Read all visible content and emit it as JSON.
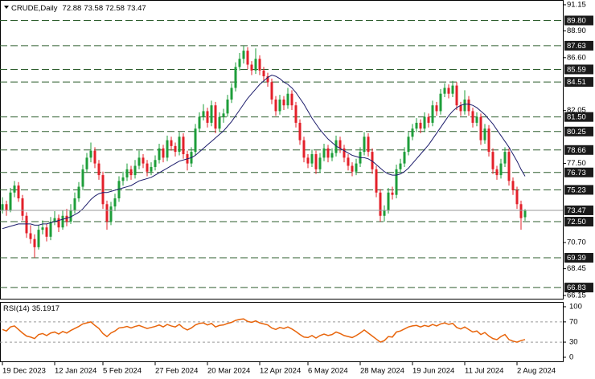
{
  "chart_data": {
    "type": "candlestick",
    "symbol": "CRUDE,Daily",
    "up_color": "#1e9e3a",
    "down_color": "#e3202a",
    "ma_color": "#1c1c6b",
    "level_color": "#2e5e2e",
    "price_line_color": "#999999",
    "ylim": [
      65.87,
      91.56
    ],
    "yticks": [
      91.15,
      {
        "value": 88.9,
        "label": "88.90"
      },
      {
        "value": 86.6,
        "label": "86.60"
      },
      82.05,
      {
        "value": 77.5,
        "label": "77.50"
      },
      {
        "value": 70.7,
        "label": "70.70"
      },
      68.45,
      66.15
    ],
    "levels": [
      {
        "value": 89.8,
        "label": "89.80"
      },
      87.63,
      85.59,
      84.51,
      {
        "value": 81.5,
        "label": "81.50"
      },
      80.25,
      78.66,
      76.73,
      75.23,
      {
        "value": 72.5,
        "label": "72.50"
      },
      69.39,
      66.83
    ],
    "categories": [
      "19 Dec 2023",
      null,
      null,
      null,
      null,
      null,
      null,
      null,
      null,
      null,
      null,
      null,
      null,
      "12 Jan 2024",
      null,
      null,
      null,
      null,
      null,
      null,
      null,
      null,
      null,
      null,
      null,
      "5 Feb 2024",
      null,
      null,
      null,
      null,
      null,
      null,
      null,
      null,
      null,
      null,
      null,
      null,
      "27 Feb 2024",
      null,
      null,
      null,
      null,
      null,
      null,
      null,
      null,
      null,
      null,
      null,
      null,
      "20 Mar 2024",
      null,
      null,
      null,
      null,
      null,
      null,
      null,
      null,
      null,
      null,
      null,
      null,
      "12 Apr 2024",
      null,
      null,
      null,
      null,
      null,
      null,
      null,
      null,
      null,
      null,
      null,
      "6 May 2024",
      null,
      null,
      null,
      null,
      null,
      null,
      null,
      null,
      null,
      null,
      null,
      null,
      "28 May 2024",
      null,
      null,
      null,
      null,
      null,
      null,
      null,
      null,
      null,
      null,
      null,
      null,
      "19 Jun 2024",
      null,
      null,
      null,
      null,
      null,
      null,
      null,
      null,
      null,
      null,
      null,
      null,
      "11 Jul 2024",
      null,
      null,
      null,
      null,
      null,
      null,
      null,
      null,
      null,
      null,
      null,
      null,
      "2 Aug 2024",
      null,
      null
    ],
    "candles": [
      [
        73.5,
        74.6,
        73.2,
        74.0
      ],
      [
        74.0,
        74.3,
        73.0,
        73.5
      ],
      [
        73.5,
        75.4,
        73.3,
        75.0
      ],
      [
        75.0,
        76.0,
        74.6,
        75.6
      ],
      [
        75.6,
        75.9,
        74.2,
        74.5
      ],
      [
        74.5,
        74.8,
        72.6,
        73.0
      ],
      [
        73.0,
        73.3,
        71.1,
        71.5
      ],
      [
        71.5,
        72.2,
        70.6,
        71.0
      ],
      [
        71.0,
        71.4,
        69.4,
        70.3
      ],
      [
        70.3,
        72.2,
        70.1,
        71.8
      ],
      [
        71.8,
        72.6,
        71.4,
        72.0
      ],
      [
        72.0,
        72.3,
        70.8,
        71.2
      ],
      [
        71.2,
        72.9,
        70.9,
        72.5
      ],
      [
        72.5,
        73.4,
        72.2,
        72.8
      ],
      [
        72.8,
        73.1,
        71.6,
        72.0
      ],
      [
        72.0,
        73.5,
        71.8,
        73.0
      ],
      [
        73.0,
        73.6,
        72.1,
        72.5
      ],
      [
        72.5,
        74.0,
        72.3,
        73.5
      ],
      [
        73.5,
        75.0,
        73.2,
        74.5
      ],
      [
        74.5,
        75.9,
        74.2,
        75.5
      ],
      [
        75.5,
        77.4,
        75.2,
        77.0
      ],
      [
        77.0,
        78.4,
        76.7,
        78.0
      ],
      [
        78.0,
        79.3,
        77.6,
        78.6
      ],
      [
        78.6,
        78.9,
        77.1,
        77.5
      ],
      [
        77.5,
        77.8,
        76.1,
        76.5
      ],
      [
        76.5,
        76.8,
        73.6,
        74.0
      ],
      [
        74.0,
        74.3,
        71.8,
        72.5
      ],
      [
        72.5,
        74.2,
        72.2,
        73.8
      ],
      [
        73.8,
        74.9,
        73.4,
        74.5
      ],
      [
        74.5,
        76.4,
        74.2,
        76.0
      ],
      [
        76.0,
        76.8,
        75.6,
        76.3
      ],
      [
        76.3,
        77.5,
        76.0,
        77.0
      ],
      [
        77.0,
        77.3,
        76.1,
        76.5
      ],
      [
        76.5,
        77.8,
        76.2,
        77.3
      ],
      [
        77.3,
        78.6,
        77.0,
        78.0
      ],
      [
        78.0,
        78.3,
        77.1,
        77.5
      ],
      [
        77.5,
        77.8,
        76.4,
        76.8
      ],
      [
        76.8,
        77.6,
        76.5,
        77.2
      ],
      [
        77.2,
        78.2,
        76.9,
        77.8
      ],
      [
        77.8,
        79.2,
        77.5,
        78.8
      ],
      [
        78.8,
        79.1,
        77.6,
        78.0
      ],
      [
        78.0,
        79.9,
        77.7,
        79.5
      ],
      [
        79.5,
        79.8,
        78.6,
        79.0
      ],
      [
        79.0,
        79.3,
        78.1,
        78.5
      ],
      [
        78.5,
        80.2,
        78.2,
        79.8
      ],
      [
        79.8,
        80.1,
        77.9,
        78.3
      ],
      [
        78.3,
        78.6,
        76.9,
        77.5
      ],
      [
        77.5,
        78.9,
        77.2,
        78.5
      ],
      [
        78.5,
        80.9,
        78.2,
        80.5
      ],
      [
        80.5,
        81.9,
        80.2,
        81.5
      ],
      [
        81.5,
        82.6,
        81.2,
        82.0
      ],
      [
        82.0,
        82.3,
        80.6,
        81.0
      ],
      [
        81.0,
        82.9,
        80.7,
        82.5
      ],
      [
        82.5,
        82.8,
        80.1,
        80.5
      ],
      [
        80.5,
        81.9,
        80.2,
        81.5
      ],
      [
        81.5,
        82.2,
        81.0,
        81.8
      ],
      [
        81.8,
        83.4,
        81.5,
        83.0
      ],
      [
        83.0,
        84.4,
        82.7,
        84.0
      ],
      [
        84.0,
        86.2,
        83.7,
        85.8
      ],
      [
        85.8,
        87.0,
        85.5,
        86.5
      ],
      [
        86.5,
        87.6,
        86.1,
        87.2
      ],
      [
        87.2,
        87.5,
        85.6,
        86.0
      ],
      [
        86.0,
        86.3,
        85.1,
        85.5
      ],
      [
        85.5,
        87.4,
        85.2,
        86.5
      ],
      [
        86.5,
        86.8,
        85.1,
        85.5
      ],
      [
        85.5,
        85.8,
        84.6,
        85.0
      ],
      [
        85.0,
        85.3,
        84.1,
        84.5
      ],
      [
        84.5,
        84.8,
        82.6,
        83.0
      ],
      [
        83.0,
        83.3,
        81.6,
        82.0
      ],
      [
        82.0,
        83.4,
        81.7,
        83.0
      ],
      [
        83.0,
        83.3,
        82.1,
        82.5
      ],
      [
        82.5,
        84.0,
        82.2,
        83.5
      ],
      [
        83.5,
        83.8,
        82.1,
        82.5
      ],
      [
        82.5,
        82.8,
        80.6,
        81.0
      ],
      [
        81.0,
        81.3,
        79.1,
        79.5
      ],
      [
        79.5,
        79.8,
        77.6,
        78.0
      ],
      [
        78.0,
        78.3,
        77.1,
        77.5
      ],
      [
        77.5,
        78.7,
        77.2,
        78.3
      ],
      [
        78.3,
        78.6,
        76.6,
        77.0
      ],
      [
        77.0,
        78.4,
        76.7,
        78.0
      ],
      [
        78.0,
        79.2,
        77.7,
        78.8
      ],
      [
        78.8,
        79.1,
        77.6,
        78.0
      ],
      [
        78.0,
        78.8,
        77.7,
        78.4
      ],
      [
        78.4,
        79.9,
        78.1,
        79.5
      ],
      [
        79.5,
        79.8,
        78.4,
        78.8
      ],
      [
        78.8,
        79.1,
        77.6,
        78.0
      ],
      [
        78.0,
        78.3,
        76.9,
        77.3
      ],
      [
        77.3,
        77.6,
        76.4,
        76.8
      ],
      [
        76.8,
        77.9,
        76.5,
        77.5
      ],
      [
        77.5,
        78.9,
        77.2,
        78.5
      ],
      [
        78.5,
        80.2,
        78.2,
        79.8
      ],
      [
        79.8,
        80.1,
        78.1,
        78.5
      ],
      [
        78.5,
        78.8,
        76.6,
        77.0
      ],
      [
        77.0,
        77.3,
        74.6,
        75.0
      ],
      [
        75.0,
        75.3,
        72.5,
        73.0
      ],
      [
        73.0,
        73.9,
        72.5,
        73.5
      ],
      [
        73.5,
        75.4,
        73.2,
        75.0
      ],
      [
        75.0,
        75.5,
        74.4,
        74.8
      ],
      [
        74.8,
        77.4,
        74.5,
        77.0
      ],
      [
        77.0,
        77.9,
        76.7,
        77.5
      ],
      [
        77.5,
        78.9,
        77.2,
        78.5
      ],
      [
        78.5,
        80.2,
        78.2,
        79.8
      ],
      [
        79.8,
        80.9,
        79.5,
        80.5
      ],
      [
        80.5,
        81.4,
        80.2,
        81.0
      ],
      [
        81.0,
        81.3,
        80.1,
        80.5
      ],
      [
        80.5,
        81.9,
        80.2,
        81.5
      ],
      [
        81.5,
        81.8,
        80.6,
        81.0
      ],
      [
        81.0,
        82.9,
        80.7,
        82.5
      ],
      [
        82.5,
        82.8,
        81.6,
        82.0
      ],
      [
        82.0,
        83.9,
        81.7,
        83.5
      ],
      [
        83.5,
        84.4,
        83.2,
        84.0
      ],
      [
        84.0,
        84.3,
        83.1,
        83.5
      ],
      [
        83.5,
        84.6,
        83.2,
        84.2
      ],
      [
        84.2,
        84.5,
        82.1,
        82.5
      ],
      [
        82.5,
        82.8,
        81.6,
        82.0
      ],
      [
        82.0,
        83.8,
        81.7,
        83.0
      ],
      [
        83.0,
        83.3,
        81.6,
        82.0
      ],
      [
        82.0,
        82.3,
        80.6,
        81.0
      ],
      [
        81.0,
        81.9,
        80.7,
        81.5
      ],
      [
        81.5,
        81.8,
        79.1,
        79.5
      ],
      [
        79.5,
        80.9,
        79.2,
        80.5
      ],
      [
        80.5,
        80.8,
        78.1,
        78.5
      ],
      [
        78.5,
        78.8,
        76.6,
        77.0
      ],
      [
        77.0,
        77.3,
        76.1,
        76.5
      ],
      [
        76.5,
        77.9,
        76.2,
        77.5
      ],
      [
        77.5,
        78.9,
        77.2,
        78.5
      ],
      [
        78.5,
        78.8,
        75.6,
        76.0
      ],
      [
        76.0,
        76.3,
        74.8,
        75.2
      ],
      [
        75.2,
        75.5,
        73.6,
        74.0
      ],
      [
        74.0,
        74.3,
        71.8,
        72.8
      ],
      [
        72.88,
        73.58,
        72.58,
        73.47
      ]
    ],
    "ma": [
      71.9,
      72.0,
      72.1,
      72.2,
      72.3,
      72.3,
      72.3,
      72.3,
      72.2,
      72.2,
      72.3,
      72.3,
      72.4,
      72.5,
      72.6,
      72.7,
      72.8,
      72.9,
      73.1,
      73.3,
      73.6,
      74.0,
      74.4,
      74.7,
      74.9,
      75.0,
      75.0,
      75.1,
      75.2,
      75.3,
      75.4,
      75.5,
      75.6,
      75.8,
      76.0,
      76.1,
      76.2,
      76.3,
      76.5,
      76.7,
      76.9,
      77.1,
      77.3,
      77.5,
      77.7,
      77.8,
      77.9,
      78.0,
      78.2,
      78.5,
      78.8,
      79.1,
      79.4,
      79.7,
      80.0,
      80.3,
      80.7,
      81.1,
      81.6,
      82.1,
      82.6,
      83.1,
      83.5,
      83.9,
      84.3,
      84.6,
      84.9,
      85.1,
      85.0,
      84.8,
      84.5,
      84.3,
      84.0,
      83.6,
      83.1,
      82.6,
      82.0,
      81.4,
      80.9,
      80.4,
      80.0,
      79.6,
      79.3,
      79.0,
      78.8,
      78.6,
      78.4,
      78.2,
      78.1,
      78.0,
      78.0,
      77.9,
      77.7,
      77.4,
      77.1,
      76.8,
      76.6,
      76.5,
      76.5,
      76.6,
      76.8,
      77.1,
      77.5,
      77.9,
      78.3,
      78.7,
      79.1,
      79.6,
      80.1,
      80.6,
      81.1,
      81.6,
      82.0,
      82.3,
      82.5,
      82.6,
      82.6,
      82.5,
      82.3,
      82.0,
      81.7,
      81.3,
      80.9,
      80.4,
      79.9,
      79.4,
      78.9,
      78.3,
      77.7,
      77.0,
      76.4
    ],
    "rsi": {
      "name": "RSI(14)",
      "color": "#e8650c",
      "level_color": "#999999",
      "ylim": [
        -8,
        109.5
      ],
      "yticks": [
        100,
        70,
        30,
        0
      ],
      "levels": [
        70,
        30
      ],
      "values": [
        55,
        52,
        60,
        62,
        55,
        48,
        42,
        40,
        37,
        45,
        47,
        43,
        48,
        50,
        46,
        51,
        48,
        53,
        57,
        61,
        66,
        68,
        70,
        63,
        57,
        47,
        41,
        48,
        52,
        58,
        59,
        61,
        58,
        61,
        63,
        60,
        57,
        59,
        61,
        64,
        60,
        65,
        62,
        60,
        65,
        58,
        54,
        58,
        64,
        67,
        68,
        64,
        67,
        60,
        63,
        64,
        67,
        69,
        73,
        75,
        76,
        71,
        69,
        72,
        68,
        66,
        64,
        58,
        55,
        59,
        57,
        60,
        56,
        51,
        45,
        40,
        39,
        43,
        38,
        43,
        46,
        43,
        45,
        50,
        47,
        43,
        41,
        39,
        43,
        48,
        54,
        48,
        42,
        36,
        30,
        33,
        41,
        40,
        50,
        52,
        56,
        60,
        62,
        63,
        60,
        63,
        61,
        65,
        62,
        66,
        68,
        65,
        67,
        59,
        56,
        60,
        55,
        50,
        52,
        45,
        49,
        42,
        37,
        35,
        41,
        45,
        35,
        32,
        30,
        33,
        35.1917
      ]
    }
  }
}
